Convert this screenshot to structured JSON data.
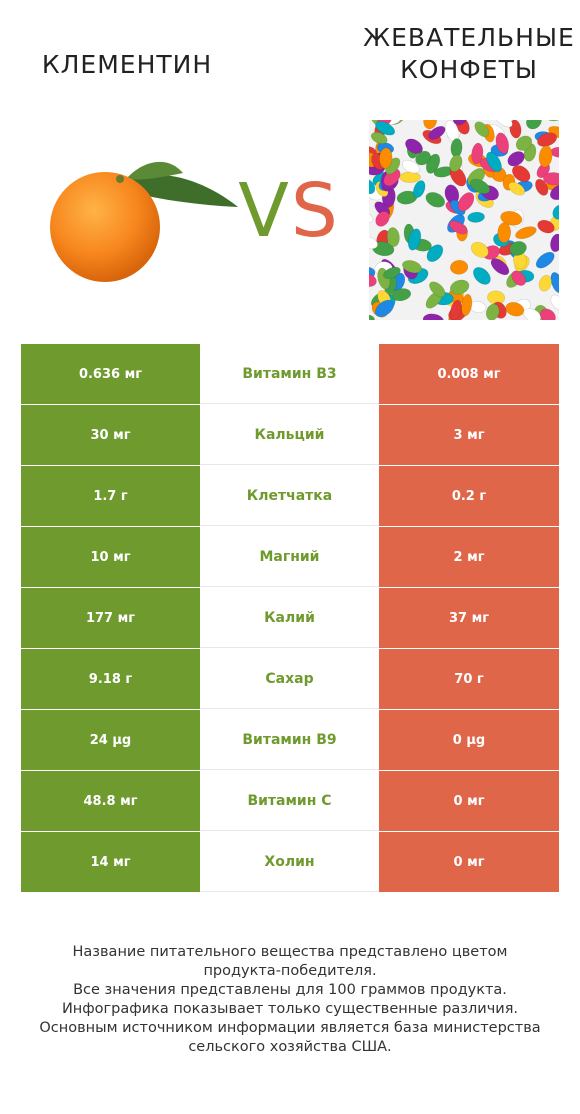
{
  "titles": {
    "left": "КЛЕМЕНТИН",
    "right_line1": "ЖЕВАТЕЛЬНЫЕ",
    "right_line2": "КОНФЕТЫ"
  },
  "vs": {
    "v": "V",
    "s": "S"
  },
  "colors": {
    "winner_left": "#6f9a2e",
    "winner_right": "#e0664a"
  },
  "images": {
    "left": "clementine-image",
    "right": "jelly-beans-image"
  },
  "rows": [
    {
      "left": "0.636 мг",
      "nutrient": "Витамин B3",
      "right": "0.008 мг"
    },
    {
      "left": "30 мг",
      "nutrient": "Кальций",
      "right": "3 мг"
    },
    {
      "left": "1.7 г",
      "nutrient": "Клетчатка",
      "right": "0.2 г"
    },
    {
      "left": "10 мг",
      "nutrient": "Магний",
      "right": "2 мг"
    },
    {
      "left": "177 мг",
      "nutrient": "Калий",
      "right": "37 мг"
    },
    {
      "left": "9.18 г",
      "nutrient": "Сахар",
      "right": "70 г"
    },
    {
      "left": "24 µg",
      "nutrient": "Витамин B9",
      "right": "0 µg"
    },
    {
      "left": "48.8 мг",
      "nutrient": "Витамин C",
      "right": "0 мг"
    },
    {
      "left": "14 мг",
      "nutrient": "Холин",
      "right": "0 мг"
    }
  ],
  "footer": {
    "line1": "Название питательного вещества представлено цветом",
    "line2": "продукта-победителя.",
    "line3": "Все значения представлены для 100 граммов продукта.",
    "line4": "Инфографика показывает только существенные различия.",
    "line5": "Основным источником информации является база министерства",
    "line6": "сельского хозяйства США."
  }
}
